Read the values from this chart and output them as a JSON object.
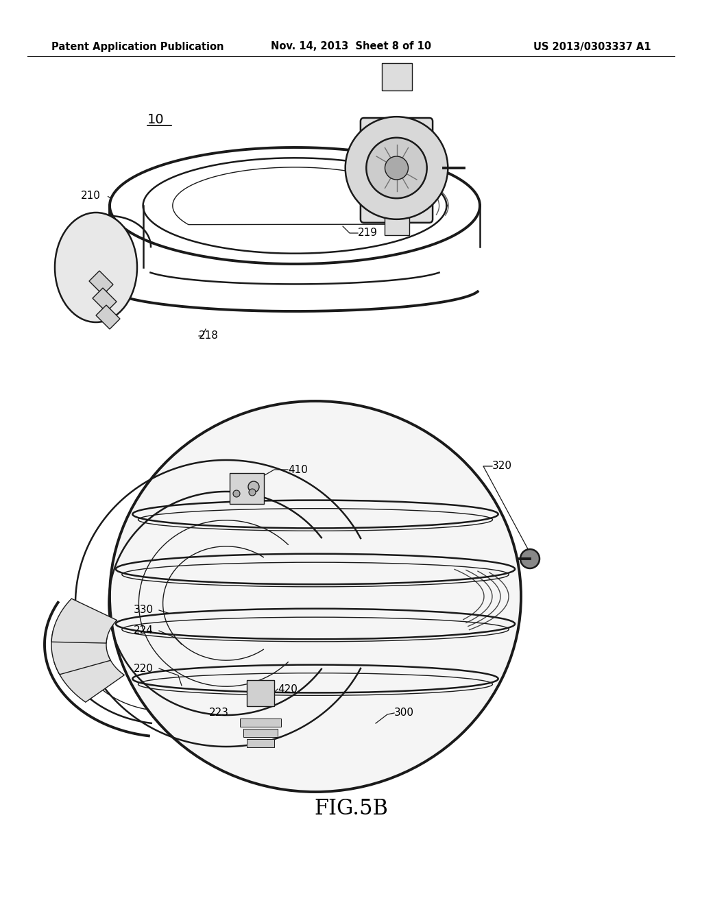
{
  "background_color": "#ffffff",
  "header_left": "Patent Application Publication",
  "header_center": "Nov. 14, 2013  Sheet 8 of 10",
  "header_right": "US 2013/0303337 A1",
  "header_fontsize": 10.5,
  "figure_label": "FIG.5B",
  "figure_label_fontsize": 22,
  "line_color": "#1a1a1a",
  "text_color": "#000000",
  "label_fontsize": 11,
  "label_10": "10",
  "label_210": "210",
  "label_218": "218",
  "label_219": "219",
  "label_220": "220",
  "label_223": "223",
  "label_224": "224",
  "label_300": "300",
  "label_320": "320",
  "label_330": "330",
  "label_410": "410",
  "label_420": "420"
}
